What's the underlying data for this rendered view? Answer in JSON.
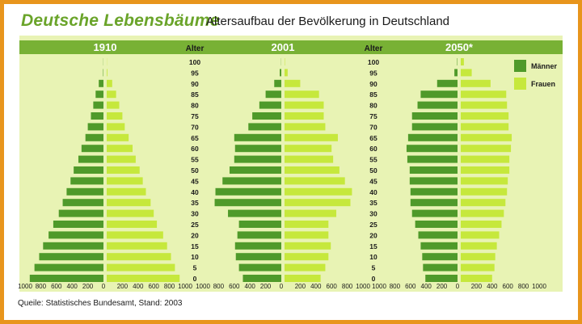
{
  "title": "Deutsche Lebensbäume",
  "subtitle": "Altersaufbau der Bevölkerung in Deutschland",
  "age_header": "Alter",
  "source": "Queile: Statistisches Bundesamt, Stand: 2003",
  "colors": {
    "frame": "#e8951c",
    "panel": "#e8f3b4",
    "header_bar": "#78b135",
    "maenner": "#4f9a2a",
    "frauen": "#c6e83c"
  },
  "chart_data": {
    "type": "bar",
    "orientation": "horizontal",
    "ages": [
      100,
      95,
      90,
      85,
      80,
      75,
      70,
      65,
      60,
      55,
      50,
      45,
      40,
      35,
      30,
      25,
      20,
      15,
      10,
      5,
      0
    ],
    "xlim": [
      0,
      1000
    ],
    "x_ticks_left": [
      "1000",
      "800",
      "600",
      "400",
      "200",
      "0"
    ],
    "x_ticks_right": [
      "200",
      "400",
      "600",
      "800",
      "1000"
    ],
    "legend": [
      {
        "key": "maenner",
        "label": "Männer"
      },
      {
        "key": "frauen",
        "label": "Frauen"
      }
    ],
    "legend_position": "right",
    "pyramids": [
      {
        "year": "1910",
        "maenner": [
          2,
          5,
          60,
          100,
          130,
          160,
          200,
          230,
          280,
          320,
          380,
          420,
          470,
          520,
          570,
          640,
          700,
          770,
          820,
          880,
          940
        ],
        "frauen": [
          2,
          8,
          70,
          120,
          160,
          200,
          230,
          280,
          330,
          370,
          420,
          460,
          500,
          560,
          600,
          640,
          720,
          770,
          820,
          870,
          930
        ]
      },
      {
        "year": "2001",
        "maenner": [
          2,
          20,
          90,
          200,
          280,
          370,
          420,
          600,
          590,
          600,
          660,
          750,
          840,
          850,
          680,
          540,
          560,
          590,
          580,
          540,
          490
        ],
        "frauen": [
          5,
          40,
          200,
          440,
          500,
          500,
          520,
          680,
          600,
          620,
          700,
          770,
          860,
          840,
          660,
          560,
          560,
          590,
          560,
          520,
          460
        ]
      },
      {
        "year": "2050*",
        "maenner": [
          5,
          40,
          260,
          470,
          510,
          580,
          580,
          630,
          650,
          640,
          610,
          610,
          600,
          600,
          580,
          540,
          500,
          470,
          450,
          440,
          410
        ],
        "frauen": [
          40,
          140,
          380,
          580,
          590,
          610,
          610,
          650,
          640,
          620,
          620,
          600,
          590,
          570,
          550,
          520,
          490,
          460,
          440,
          430,
          400
        ]
      }
    ]
  }
}
